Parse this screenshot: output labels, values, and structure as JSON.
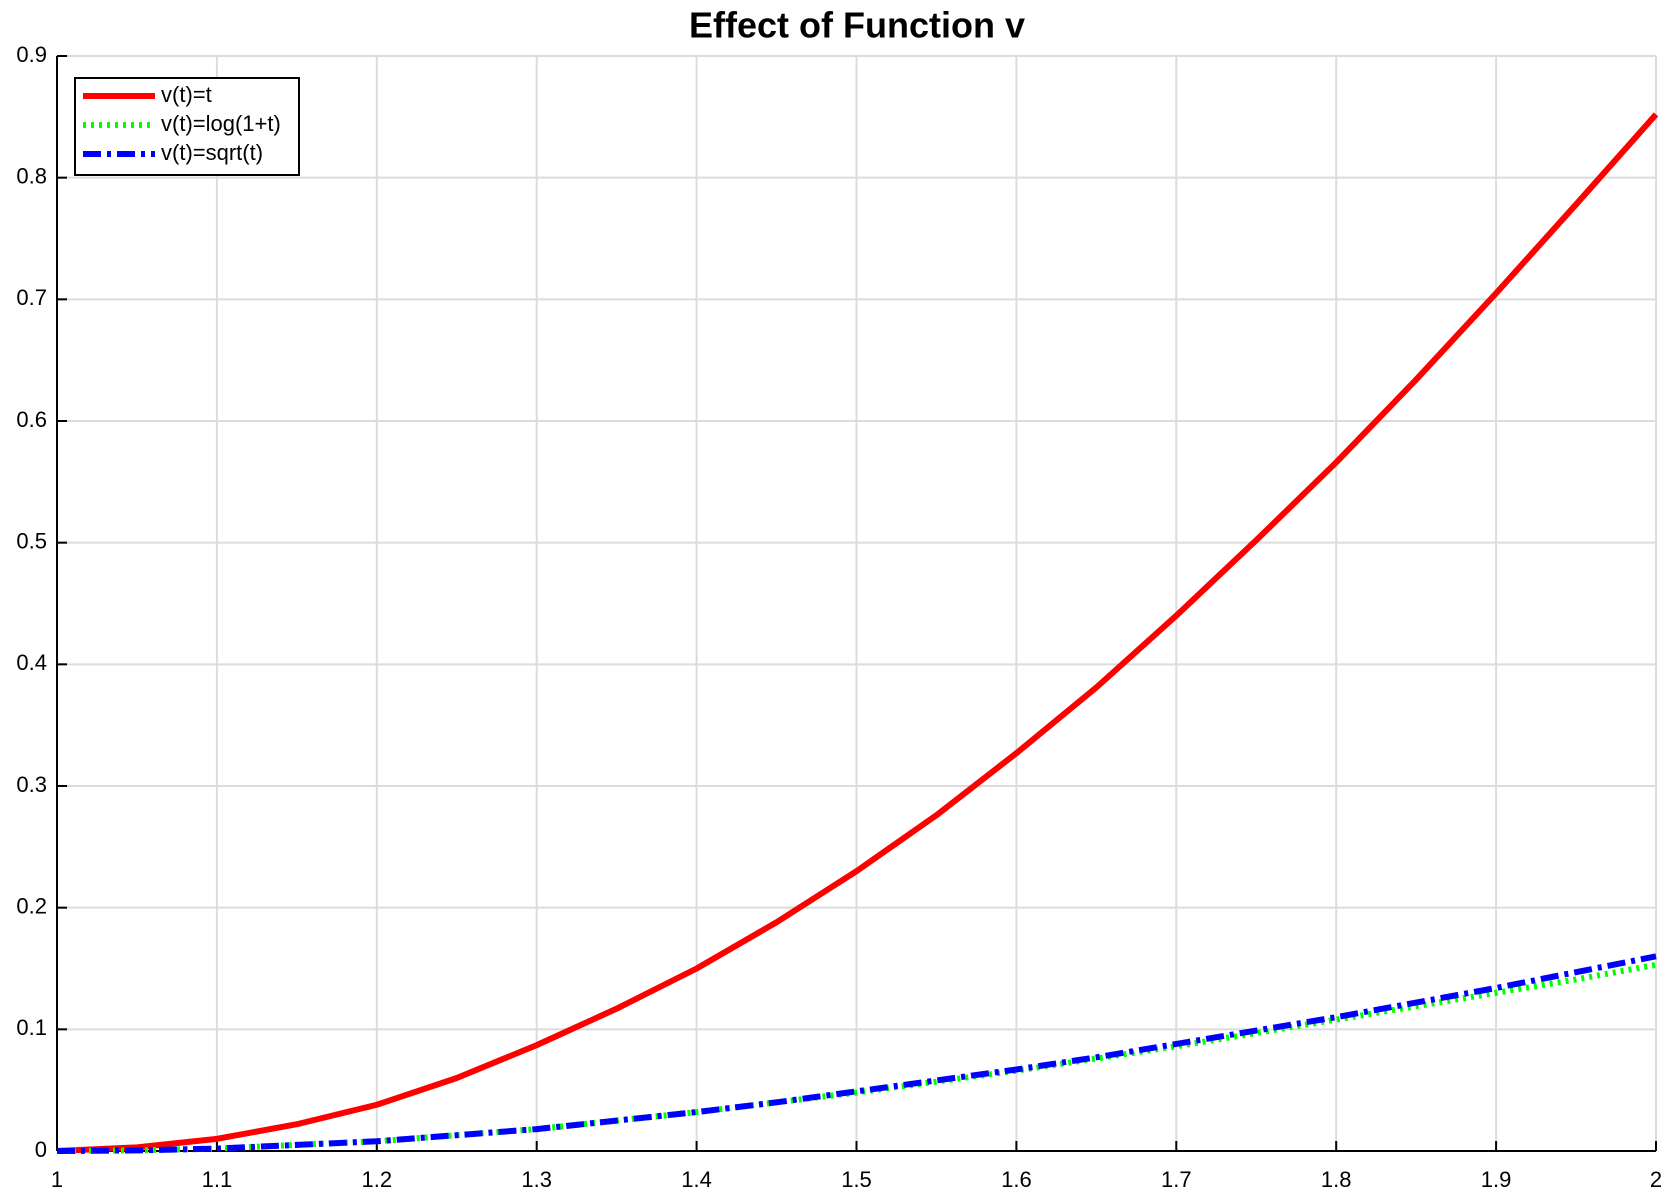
{
  "chart_data": {
    "type": "line",
    "title": "Effect of Function v",
    "x": [
      1,
      1.05,
      1.1,
      1.15,
      1.2,
      1.25,
      1.3,
      1.35,
      1.4,
      1.45,
      1.5,
      1.55,
      1.6,
      1.65,
      1.7,
      1.75,
      1.8,
      1.85,
      1.9,
      1.95,
      2
    ],
    "series": [
      {
        "name": "v(t)=t",
        "color": "#ff0000",
        "line_style": "solid",
        "values": [
          0,
          0.003,
          0.01,
          0.022,
          0.038,
          0.06,
          0.087,
          0.117,
          0.15,
          0.188,
          0.23,
          0.276,
          0.327,
          0.381,
          0.44,
          0.502,
          0.566,
          0.634,
          0.705,
          0.778,
          0.852
        ]
      },
      {
        "name": "v(t)=log(1+t)",
        "color": "#00ff00",
        "line_style": "dotted",
        "values": [
          0,
          0.0005,
          0.002,
          0.005,
          0.008,
          0.013,
          0.018,
          0.025,
          0.032,
          0.04,
          0.048,
          0.057,
          0.066,
          0.076,
          0.086,
          0.097,
          0.108,
          0.119,
          0.13,
          0.141,
          0.153
        ]
      },
      {
        "name": "v(t)=sqrt(t)",
        "color": "#0000ff",
        "line_style": "dashdot",
        "values": [
          0,
          0.0005,
          0.002,
          0.005,
          0.008,
          0.013,
          0.018,
          0.025,
          0.032,
          0.04,
          0.049,
          0.058,
          0.067,
          0.077,
          0.088,
          0.099,
          0.11,
          0.122,
          0.134,
          0.147,
          0.16
        ]
      }
    ],
    "xlim": [
      1,
      2
    ],
    "xticks": [
      1,
      1.1,
      1.2,
      1.3,
      1.4,
      1.5,
      1.6,
      1.7,
      1.8,
      1.9,
      2
    ],
    "ylim": [
      0,
      0.9
    ],
    "yticks": [
      0,
      0.1,
      0.2,
      0.3,
      0.4,
      0.5,
      0.6,
      0.7,
      0.8,
      0.9
    ],
    "grid": true,
    "legend": "top-left"
  }
}
